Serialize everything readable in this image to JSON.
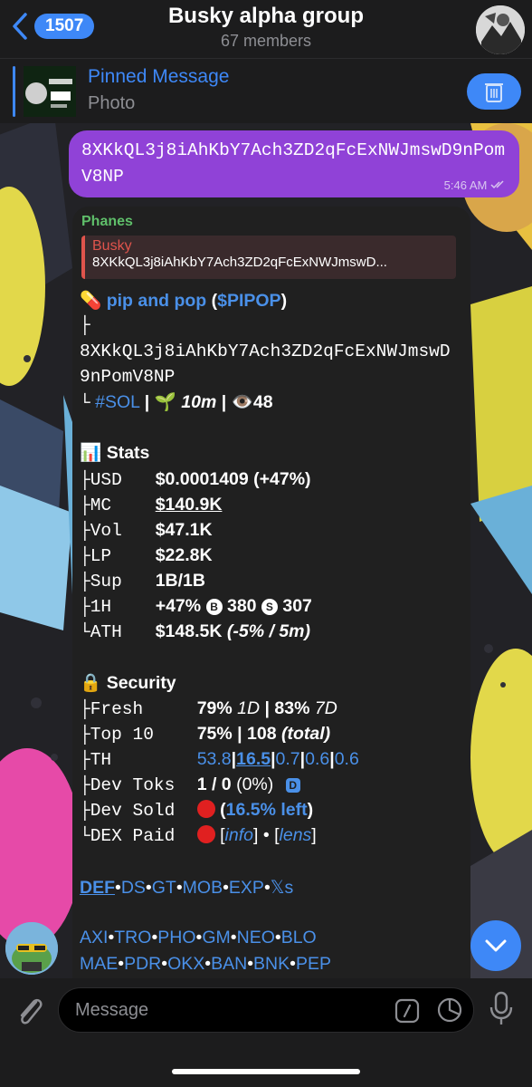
{
  "header": {
    "back_count": "1507",
    "title": "Busky alpha group",
    "subtitle": "67 members"
  },
  "pinned": {
    "title": "Pinned Message",
    "subtitle": "Photo"
  },
  "out_message": {
    "text": "8XKkQL3j8iAhKbY7Ach3ZD2qFcExNWJmswD9nPomV8NP",
    "time": "5:46 AM"
  },
  "in_message": {
    "sender": "Phanes",
    "reply_name": "Busky",
    "reply_text": "8XKkQL3j8iAhKbY7Ach3ZD2qFcExNWJmswD...",
    "token_emoji": "💊",
    "token_name": "pip and pop",
    "token_ticker": "$PIPOP",
    "ca_line1": "8XKkQL3j8iAhKbY7Ach3ZD2qFcExNWJmswD",
    "ca_line2": "9nPomV8NP",
    "chain": "#SOL",
    "age_emoji": "🌱",
    "age": "10m",
    "eye_emoji": "👁️",
    "views": "48",
    "stats_emoji": "📊",
    "stats_title": "Stats",
    "stats": [
      {
        "label": "USD",
        "value": "$0.0001409 (+47%)"
      },
      {
        "label": "MC",
        "value": "$140.9K"
      },
      {
        "label": "Vol",
        "value": "$47.1K"
      },
      {
        "label": "LP",
        "value": "$22.8K"
      },
      {
        "label": "Sup",
        "value": "1B/1B"
      }
    ],
    "h1_label": "1H",
    "h1_change": "+47%",
    "h1_buy_badge": "B",
    "h1_buys": "380",
    "h1_sell_badge": "S",
    "h1_sells": "307",
    "ath_label": "ATH",
    "ath_value": "$148.5K",
    "ath_note": "(-5% / 5m)",
    "security_emoji": "🔒",
    "security_title": "Security",
    "fresh_label": "Fresh",
    "fresh_a": "79%",
    "fresh_a_period": "1D",
    "fresh_b": "83%",
    "fresh_b_period": "7D",
    "top10_label": "Top 10",
    "top10_pct": "75%",
    "top10_count": "108",
    "top10_note": "(total)",
    "th_label": "TH",
    "th_values": [
      "53.8",
      "16.5",
      "0.7",
      "0.6",
      "0.6"
    ],
    "devtoks_label": "Dev Toks",
    "devtoks_value": "1 / 0",
    "devtoks_pct": "(0%)",
    "devtoks_badge": "D",
    "devsold_label": "Dev Sold",
    "devsold_value": "16.5% left",
    "dexpaid_label": "DEX Paid",
    "dexpaid_info": "info",
    "dexpaid_lens": "lens",
    "links_row1": [
      "DEF",
      "DS",
      "GT",
      "MOB",
      "EXP",
      "𝕏s"
    ],
    "links_row2": [
      "AXI",
      "TRO",
      "PHO",
      "GM",
      "NEO",
      "BLO"
    ],
    "links_row3": [
      "MAE",
      "PDR",
      "OKX",
      "BAN",
      "BNK",
      "PEP"
    ]
  },
  "composer": {
    "placeholder": "Message"
  },
  "colors": {
    "accent": "#3e88f7",
    "out_bubble": "#9042d7",
    "in_bubble": "#202020",
    "sender": "#5fbf6a",
    "reply": "#e0544c",
    "link": "#4a90e8"
  }
}
